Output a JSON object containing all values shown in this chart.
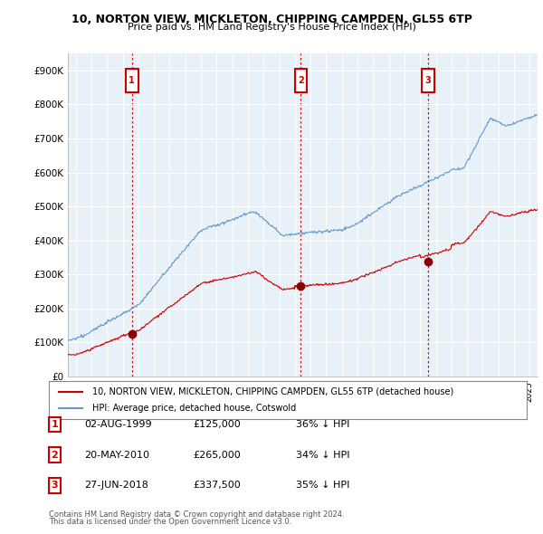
{
  "title1": "10, NORTON VIEW, MICKLETON, CHIPPING CAMPDEN, GL55 6TP",
  "title2": "Price paid vs. HM Land Registry's House Price Index (HPI)",
  "legend_label_red": "10, NORTON VIEW, MICKLETON, CHIPPING CAMPDEN, GL55 6TP (detached house)",
  "legend_label_blue": "HPI: Average price, detached house, Cotswold",
  "transactions": [
    {
      "num": 1,
      "date": "02-AUG-1999",
      "price": "£125,000",
      "pct": "36% ↓ HPI",
      "x": 1999.58
    },
    {
      "num": 2,
      "date": "20-MAY-2010",
      "price": "£265,000",
      "pct": "34% ↓ HPI",
      "x": 2010.38
    },
    {
      "num": 3,
      "date": "27-JUN-2018",
      "price": "£337,500",
      "pct": "35% ↓ HPI",
      "x": 2018.49
    }
  ],
  "transaction_values": [
    125000,
    265000,
    337500
  ],
  "ylim": [
    0,
    950000
  ],
  "yticks": [
    0,
    100000,
    200000,
    300000,
    400000,
    500000,
    600000,
    700000,
    800000,
    900000
  ],
  "ytick_labels": [
    "£0",
    "£100K",
    "£200K",
    "£300K",
    "£400K",
    "£500K",
    "£600K",
    "£700K",
    "£800K",
    "£900K"
  ],
  "hpi_color": "#6699cc",
  "hpi_fill_color": "#dce9f5",
  "price_color": "#cc0000",
  "vline_color": "#cc0000",
  "bg_color": "#ffffff",
  "chart_bg_color": "#e8f0f8",
  "grid_color": "#ffffff",
  "footnote1": "Contains HM Land Registry data © Crown copyright and database right 2024.",
  "footnote2": "This data is licensed under the Open Government Licence v3.0.",
  "xlim_start": 1995.5,
  "xlim_end": 2025.5
}
